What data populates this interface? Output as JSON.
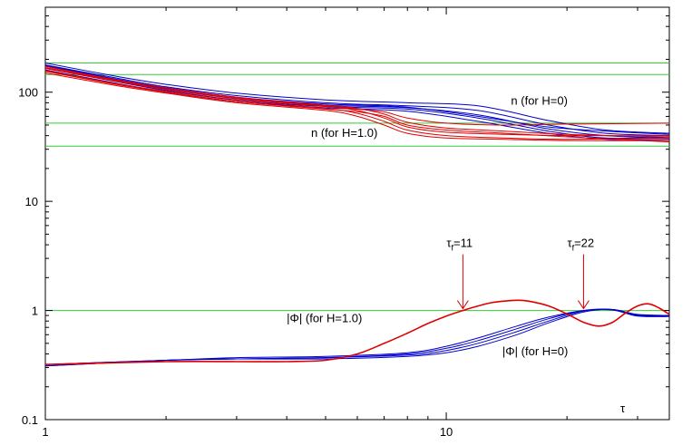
{
  "chart_data": {
    "type": "line",
    "xscale": "log",
    "yscale": "log",
    "xlim": [
      1,
      36
    ],
    "ylim": [
      0.1,
      600
    ],
    "x_ticks": [
      {
        "value": 1,
        "label": "1"
      },
      {
        "value": 10,
        "label": "10"
      }
    ],
    "y_ticks": [
      {
        "value": 0.1,
        "label": "0.1"
      },
      {
        "value": 1,
        "label": "1"
      },
      {
        "value": 10,
        "label": "10"
      },
      {
        "value": 100,
        "label": "100"
      }
    ],
    "xlabel": "τ",
    "hlines": [
      185,
      145,
      52,
      32,
      1
    ],
    "annotations": [
      {
        "text": "n  (for H=0)",
        "x": 14.5,
        "y": 77
      },
      {
        "text": "n  (for H=1.0)",
        "x": 4.6,
        "y": 39
      },
      {
        "text": "|Φ| (for H=1.0)",
        "x": 4.0,
        "y": 0.78
      },
      {
        "text": "|Φ| (for H=0)",
        "x": 13.8,
        "y": 0.39
      }
    ],
    "arrows": [
      {
        "label": "τ",
        "sub": "f",
        "value": "=11",
        "x": 11,
        "y": 1.0
      },
      {
        "label": "τ",
        "sub": "f",
        "value": "=22",
        "x": 22,
        "y": 1.0
      }
    ],
    "series": [
      {
        "group": "n_H0",
        "color": "#0000cc",
        "x": [
          1,
          1.5,
          2,
          3,
          5,
          8,
          12,
          18,
          25,
          36
        ],
        "y": [
          185,
          140,
          118,
          98,
          85,
          80,
          75,
          55,
          45,
          42
        ]
      },
      {
        "group": "n_H0",
        "color": "#0000cc",
        "x": [
          1,
          1.5,
          2,
          3,
          5,
          8,
          12,
          18,
          25,
          36
        ],
        "y": [
          178,
          135,
          112,
          93,
          80,
          75,
          68,
          50,
          42,
          40
        ]
      },
      {
        "group": "n_H0",
        "color": "#0000cc",
        "x": [
          1,
          1.5,
          2,
          3,
          5,
          8,
          12,
          18,
          25,
          36
        ],
        "y": [
          172,
          130,
          108,
          88,
          76,
          72,
          62,
          46,
          40,
          38
        ]
      },
      {
        "group": "n_H0",
        "color": "#0000cc",
        "x": [
          1,
          1.5,
          2,
          3,
          5,
          8,
          12,
          18,
          25,
          36
        ],
        "y": [
          166,
          125,
          104,
          85,
          74,
          70,
          58,
          44,
          38,
          39
        ]
      },
      {
        "group": "n_H0",
        "color": "#0000cc",
        "x": [
          1,
          1.5,
          2,
          3,
          5,
          8,
          12,
          18,
          25,
          36
        ],
        "y": [
          160,
          121,
          100,
          82,
          72,
          67,
          54,
          42,
          37,
          37
        ]
      },
      {
        "group": "n_H0",
        "color": "#0000cc",
        "x": [
          1,
          1.5,
          2,
          3,
          5,
          8,
          12,
          18,
          25,
          36
        ],
        "y": [
          175,
          132,
          110,
          90,
          78,
          73,
          60,
          48,
          44,
          41
        ]
      },
      {
        "group": "n_H10",
        "color": "#e00000",
        "x": [
          1,
          1.5,
          2,
          3,
          5,
          6,
          7,
          8,
          10,
          14,
          20,
          36
        ],
        "y": [
          150,
          115,
          98,
          80,
          68,
          60,
          50,
          42,
          38,
          37,
          36,
          36
        ]
      },
      {
        "group": "n_H10",
        "color": "#e00000",
        "x": [
          1,
          1.5,
          2,
          3,
          5,
          6,
          7,
          8,
          10,
          14,
          20,
          36
        ],
        "y": [
          158,
          120,
          102,
          84,
          71,
          64,
          54,
          45,
          40,
          38,
          37,
          38
        ]
      },
      {
        "group": "n_H10",
        "color": "#e00000",
        "x": [
          1,
          1.5,
          2,
          3,
          5,
          6,
          7,
          8,
          10,
          14,
          20,
          36
        ],
        "y": [
          165,
          126,
          106,
          87,
          74,
          68,
          58,
          48,
          43,
          41,
          40,
          40
        ]
      },
      {
        "group": "n_H10",
        "color": "#e00000",
        "x": [
          1,
          1.5,
          2,
          3,
          5,
          6,
          7,
          8,
          10,
          14,
          20,
          36
        ],
        "y": [
          172,
          130,
          110,
          90,
          76,
          71,
          63,
          53,
          47,
          44,
          41,
          39
        ]
      },
      {
        "group": "n_H10",
        "color": "#e00000",
        "x": [
          1,
          1.5,
          2,
          3,
          5,
          6,
          7,
          8,
          10,
          14,
          20,
          36
        ],
        "y": [
          168,
          128,
          107,
          88,
          75,
          70,
          66,
          58,
          52,
          50,
          51,
          52
        ]
      },
      {
        "group": "n_H10",
        "color": "#e00000",
        "x": [
          1,
          1.5,
          2,
          3,
          5,
          6,
          7,
          8,
          10,
          14,
          20,
          36
        ],
        "y": [
          155,
          118,
          100,
          82,
          70,
          66,
          60,
          50,
          45,
          42,
          39,
          35
        ]
      },
      {
        "group": "phi_H0",
        "color": "#0000cc",
        "x": [
          1,
          2,
          3,
          5,
          8,
          10,
          12,
          15,
          18,
          22,
          26,
          30,
          36
        ],
        "y": [
          0.31,
          0.35,
          0.36,
          0.36,
          0.38,
          0.41,
          0.47,
          0.6,
          0.77,
          0.97,
          1.02,
          0.92,
          0.9
        ]
      },
      {
        "group": "phi_H0",
        "color": "#0000cc",
        "x": [
          1,
          2,
          3,
          5,
          8,
          10,
          12,
          15,
          18,
          22,
          26,
          30,
          36
        ],
        "y": [
          0.31,
          0.35,
          0.36,
          0.37,
          0.39,
          0.43,
          0.5,
          0.64,
          0.8,
          0.99,
          1.02,
          0.91,
          0.9
        ]
      },
      {
        "group": "phi_H0",
        "color": "#0000cc",
        "x": [
          1,
          2,
          3,
          5,
          8,
          10,
          12,
          15,
          18,
          22,
          26,
          30,
          36
        ],
        "y": [
          0.32,
          0.35,
          0.36,
          0.37,
          0.4,
          0.45,
          0.53,
          0.68,
          0.84,
          1.0,
          1.02,
          0.9,
          0.89
        ]
      },
      {
        "group": "phi_H0",
        "color": "#0000cc",
        "x": [
          1,
          2,
          3,
          5,
          8,
          10,
          12,
          15,
          18,
          22,
          26,
          30,
          36
        ],
        "y": [
          0.32,
          0.35,
          0.37,
          0.38,
          0.41,
          0.47,
          0.56,
          0.72,
          0.87,
          1.0,
          1.01,
          0.89,
          0.88
        ]
      },
      {
        "group": "phi_H10",
        "color": "#e00000",
        "x": [
          1,
          2,
          3,
          4,
          5,
          6,
          7,
          8,
          9,
          10,
          11,
          12,
          13,
          14,
          15,
          16,
          18,
          20,
          22,
          24,
          26,
          28,
          30,
          32,
          34,
          36
        ],
        "y": [
          0.32,
          0.34,
          0.34,
          0.34,
          0.35,
          0.4,
          0.5,
          0.62,
          0.76,
          0.89,
          1.0,
          1.1,
          1.18,
          1.22,
          1.24,
          1.22,
          1.1,
          0.93,
          0.78,
          0.72,
          0.78,
          0.95,
          1.1,
          1.15,
          1.05,
          0.92
        ]
      }
    ]
  }
}
